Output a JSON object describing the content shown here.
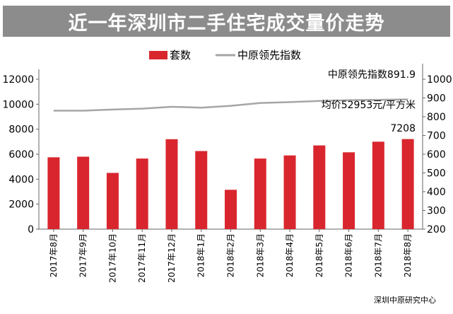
{
  "title": "近一年深圳市二手住宅成交量价走势",
  "source": "深圳中原研究中心",
  "colors": {
    "bar": "#d9262e",
    "line": "#a6a6a6",
    "title_bg": "#8c8c8c",
    "axis": "#666666"
  },
  "chart_data": {
    "type": "bar",
    "categories": [
      "2017年8月",
      "2017年9月",
      "2017年10月",
      "2017年11月",
      "2017年12月",
      "2018年1月",
      "2018年2月",
      "2018年3月",
      "2018年4月",
      "2018年5月",
      "2018年6月",
      "2018年7月",
      "2018年8月"
    ],
    "series": [
      {
        "name": "套数",
        "type": "bar",
        "axis": "left",
        "values": [
          5750,
          5800,
          4500,
          5650,
          7200,
          6250,
          3150,
          5650,
          5900,
          6700,
          6150,
          7000,
          7208
        ]
      },
      {
        "name": "中原领先指数",
        "type": "line",
        "axis": "right",
        "values": [
          832,
          832,
          838,
          843,
          853,
          848,
          858,
          873,
          878,
          884,
          888,
          890,
          891.9
        ]
      }
    ],
    "ylim_left": [
      0,
      12000
    ],
    "yticks_left": [
      0,
      2000,
      4000,
      6000,
      8000,
      10000,
      12000
    ],
    "ylim_right": [
      200,
      1000
    ],
    "yticks_right": [
      200,
      300,
      400,
      500,
      600,
      700,
      800,
      900,
      1000
    ],
    "legend": {
      "position": "top",
      "items": [
        "套数",
        "中原领先指数"
      ]
    },
    "annotations": {
      "index_label": "中原领先指数891.9",
      "price_label": "均价52953元/平方米",
      "last_bar_label": "7208"
    },
    "grid": false
  }
}
